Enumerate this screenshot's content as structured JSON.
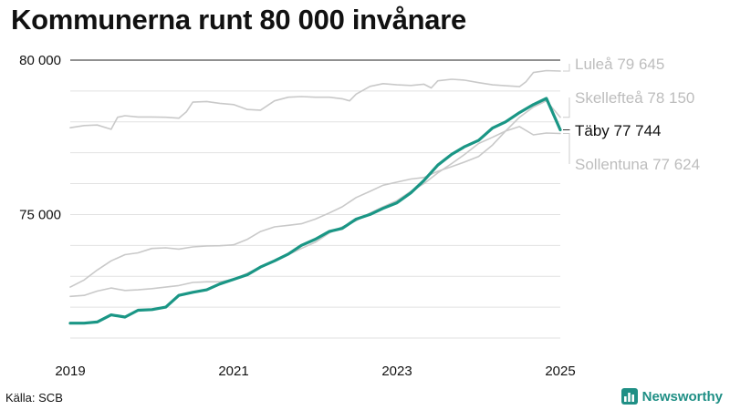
{
  "title": "Kommunerna runt 80 000 invånare",
  "source": "Källa: SCB",
  "brand": {
    "name": "Newsworthy",
    "icon": "newsworthy-logo-icon",
    "color": "#1f8f85"
  },
  "chart_data": {
    "type": "line",
    "xlim": [
      2019.0,
      2025.0
    ],
    "ylim": [
      71000,
      80000
    ],
    "x_ticks": [
      {
        "value": 2019,
        "label": "2019"
      },
      {
        "value": 2021,
        "label": "2021"
      },
      {
        "value": 2023,
        "label": "2023"
      },
      {
        "value": 2025,
        "label": "2025"
      }
    ],
    "y_ticks": [
      {
        "value": 75000,
        "label": "75 000"
      },
      {
        "value": 80000,
        "label": "80 000"
      }
    ],
    "grid": true,
    "highlight_color": "#1a9685",
    "other_color": "#c9c9c9",
    "series": [
      {
        "name": "Luleå",
        "label": "Luleå 79 645",
        "highlight": false,
        "x": [
          2019.0,
          2019.17,
          2019.33,
          2019.5,
          2019.58,
          2019.67,
          2019.83,
          2020.0,
          2020.17,
          2020.33,
          2020.42,
          2020.5,
          2020.67,
          2020.83,
          2021.0,
          2021.17,
          2021.33,
          2021.5,
          2021.67,
          2021.83,
          2022.0,
          2022.17,
          2022.33,
          2022.42,
          2022.5,
          2022.67,
          2022.83,
          2023.0,
          2023.17,
          2023.33,
          2023.42,
          2023.5,
          2023.67,
          2023.83,
          2024.0,
          2024.17,
          2024.33,
          2024.5,
          2024.58,
          2024.67,
          2024.83,
          2025.0
        ],
        "y": [
          77810,
          77880,
          77900,
          77760,
          78150,
          78200,
          78160,
          78160,
          78150,
          78120,
          78320,
          78640,
          78660,
          78600,
          78560,
          78400,
          78380,
          78680,
          78800,
          78820,
          78800,
          78800,
          78750,
          78680,
          78900,
          79150,
          79240,
          79200,
          79180,
          79220,
          79100,
          79330,
          79380,
          79350,
          79270,
          79200,
          79170,
          79140,
          79300,
          79600,
          79660,
          79645
        ]
      },
      {
        "name": "Skellefteå",
        "label": "Skellefteå 78 150",
        "highlight": false,
        "x": [
          2019.0,
          2019.17,
          2019.33,
          2019.5,
          2019.67,
          2019.83,
          2020.0,
          2020.17,
          2020.33,
          2020.5,
          2020.67,
          2020.83,
          2021.0,
          2021.17,
          2021.33,
          2021.5,
          2021.67,
          2021.83,
          2022.0,
          2022.17,
          2022.33,
          2022.5,
          2022.67,
          2022.83,
          2023.0,
          2023.17,
          2023.33,
          2023.5,
          2023.67,
          2023.83,
          2024.0,
          2024.17,
          2024.33,
          2024.5,
          2024.67,
          2024.83,
          2025.0
        ],
        "y": [
          72650,
          72880,
          73200,
          73500,
          73700,
          73760,
          73900,
          73920,
          73880,
          73950,
          73980,
          73990,
          74020,
          74200,
          74450,
          74600,
          74650,
          74700,
          74850,
          75050,
          75250,
          75550,
          75750,
          75950,
          76050,
          76150,
          76200,
          76400,
          76550,
          76700,
          76880,
          77250,
          77700,
          78150,
          78480,
          78680,
          78150
        ]
      },
      {
        "name": "Täby",
        "label": "Täby 77 744",
        "highlight": true,
        "x": [
          2019.0,
          2019.17,
          2019.33,
          2019.5,
          2019.67,
          2019.83,
          2020.0,
          2020.17,
          2020.33,
          2020.5,
          2020.67,
          2020.83,
          2021.0,
          2021.17,
          2021.33,
          2021.5,
          2021.67,
          2021.83,
          2022.0,
          2022.17,
          2022.33,
          2022.5,
          2022.67,
          2022.83,
          2023.0,
          2023.17,
          2023.33,
          2023.5,
          2023.67,
          2023.83,
          2024.0,
          2024.17,
          2024.33,
          2024.5,
          2024.67,
          2024.83,
          2025.0
        ],
        "y": [
          71480,
          71480,
          71520,
          71750,
          71680,
          71900,
          71920,
          72000,
          72380,
          72480,
          72560,
          72750,
          72900,
          73050,
          73300,
          73500,
          73720,
          74000,
          74200,
          74450,
          74550,
          74850,
          75000,
          75200,
          75380,
          75700,
          76100,
          76600,
          76950,
          77200,
          77400,
          77800,
          78000,
          78300,
          78560,
          78760,
          77744
        ]
      },
      {
        "name": "Sollentuna",
        "label": "Sollentuna 77 624",
        "highlight": false,
        "x": [
          2019.0,
          2019.17,
          2019.33,
          2019.5,
          2019.67,
          2019.83,
          2020.0,
          2020.17,
          2020.33,
          2020.5,
          2020.67,
          2020.83,
          2021.0,
          2021.17,
          2021.33,
          2021.5,
          2021.67,
          2021.83,
          2022.0,
          2022.17,
          2022.33,
          2022.5,
          2022.67,
          2022.83,
          2023.0,
          2023.17,
          2023.33,
          2023.5,
          2023.67,
          2023.83,
          2024.0,
          2024.17,
          2024.33,
          2024.5,
          2024.67,
          2024.83,
          2025.0
        ],
        "y": [
          72350,
          72380,
          72520,
          72620,
          72540,
          72560,
          72600,
          72650,
          72700,
          72800,
          72820,
          72820,
          72900,
          73100,
          73300,
          73500,
          73700,
          73900,
          74100,
          74400,
          74600,
          74800,
          75050,
          75250,
          75450,
          75750,
          76000,
          76350,
          76650,
          76950,
          77300,
          77500,
          77700,
          77850,
          77580,
          77640,
          77624
        ]
      }
    ]
  }
}
